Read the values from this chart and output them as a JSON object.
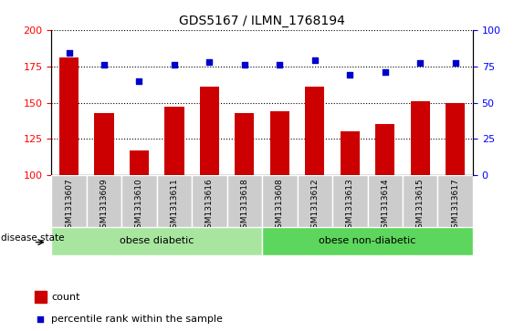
{
  "title": "GDS5167 / ILMN_1768194",
  "samples": [
    "GSM1313607",
    "GSM1313609",
    "GSM1313610",
    "GSM1313611",
    "GSM1313616",
    "GSM1313618",
    "GSM1313608",
    "GSM1313612",
    "GSM1313613",
    "GSM1313614",
    "GSM1313615",
    "GSM1313617"
  ],
  "bar_values": [
    181,
    143,
    117,
    147,
    161,
    143,
    144,
    161,
    130,
    135,
    151,
    150
  ],
  "percentile_values": [
    84,
    76,
    65,
    76,
    78,
    76,
    76,
    79,
    69,
    71,
    77,
    77
  ],
  "ylim_left": [
    100,
    200
  ],
  "ylim_right": [
    0,
    100
  ],
  "yticks_left": [
    100,
    125,
    150,
    175,
    200
  ],
  "yticks_right": [
    0,
    25,
    50,
    75,
    100
  ],
  "bar_color": "#cc0000",
  "dot_color": "#0000cc",
  "group1_label": "obese diabetic",
  "group2_label": "obese non-diabetic",
  "group1_count": 6,
  "group2_count": 6,
  "group1_color": "#a8e6a0",
  "group2_color": "#5cd65c",
  "disease_state_label": "disease state",
  "legend_count_label": "count",
  "legend_percentile_label": "percentile rank within the sample",
  "tick_label_bg": "#cccccc",
  "grid_linestyle": ":",
  "grid_color": "black",
  "bar_width": 0.55
}
